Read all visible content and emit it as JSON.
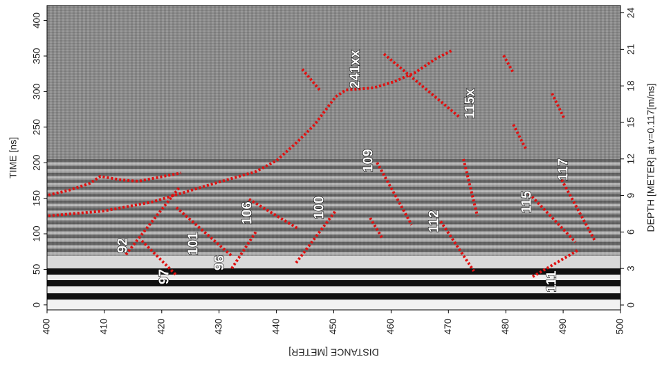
{
  "chart_data": {
    "type": "radargram",
    "xlabel": "DISTANCE [METER]",
    "ylabel": "TIME [ns]",
    "y2label": "DEPTH [METER] at v=0.117[m/ns]",
    "xlim": [
      400,
      500
    ],
    "xticks": [
      400,
      410,
      420,
      430,
      440,
      450,
      460,
      470,
      480,
      490,
      500
    ],
    "ylim": [
      -7,
      421
    ],
    "yticks": [
      0,
      50,
      100,
      150,
      200,
      250,
      300,
      350,
      400
    ],
    "y2lim": [
      -0.4,
      24.6
    ],
    "y2ticks": [
      0,
      3,
      6,
      9,
      12,
      15,
      18,
      21,
      24
    ],
    "annotations": [
      "92",
      "97",
      "101",
      "96",
      "106",
      "100",
      "109",
      "112",
      "115",
      "117",
      "111",
      "241xx",
      "115x"
    ]
  }
}
